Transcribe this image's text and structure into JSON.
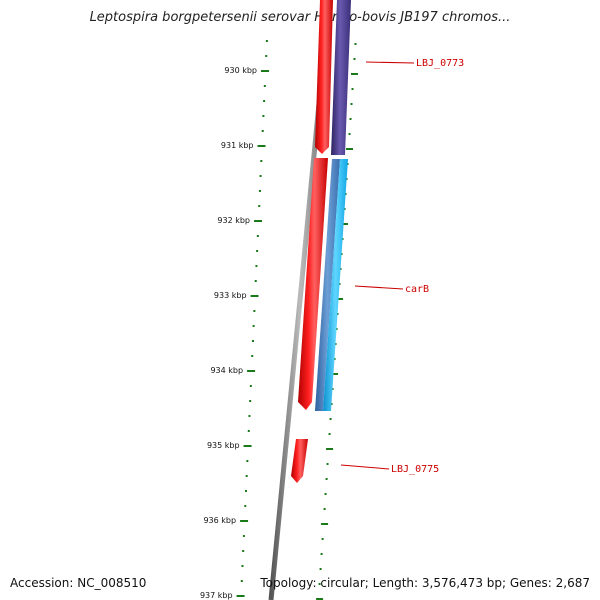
{
  "title": "Leptospira borgpetersenii serovar Hardjo-bovis JB197 chromos...",
  "ticks": [
    {
      "kbp": 930,
      "label": "930 kbp"
    },
    {
      "kbp": 931,
      "label": "931 kbp"
    },
    {
      "kbp": 932,
      "label": "932 kbp"
    },
    {
      "kbp": 933,
      "label": "933 kbp"
    },
    {
      "kbp": 934,
      "label": "934 kbp"
    },
    {
      "kbp": 935,
      "label": "935 kbp"
    },
    {
      "kbp": 936,
      "label": "936 kbp"
    },
    {
      "kbp": 937,
      "label": "937 kbp"
    }
  ],
  "genes": [
    {
      "name": "LBJ_0773",
      "label": "LBJ_0773"
    },
    {
      "name": "carB",
      "label": "carB"
    },
    {
      "name": "LBJ_0775",
      "label": "LBJ_0775"
    }
  ],
  "footer": {
    "accession": "Accession: NC_008510",
    "topology": "Topology: circular; Length: 3,576,473 bp; Genes: 2,687"
  },
  "colors": {
    "backbone": "#8c8c8c",
    "forward_cds": "#ff0000",
    "reverse_gene": "#4a3a8c",
    "reverse_cds": "#1ab8f0",
    "ticks": "#1a7a1a",
    "gene_label": "#cc0000"
  }
}
